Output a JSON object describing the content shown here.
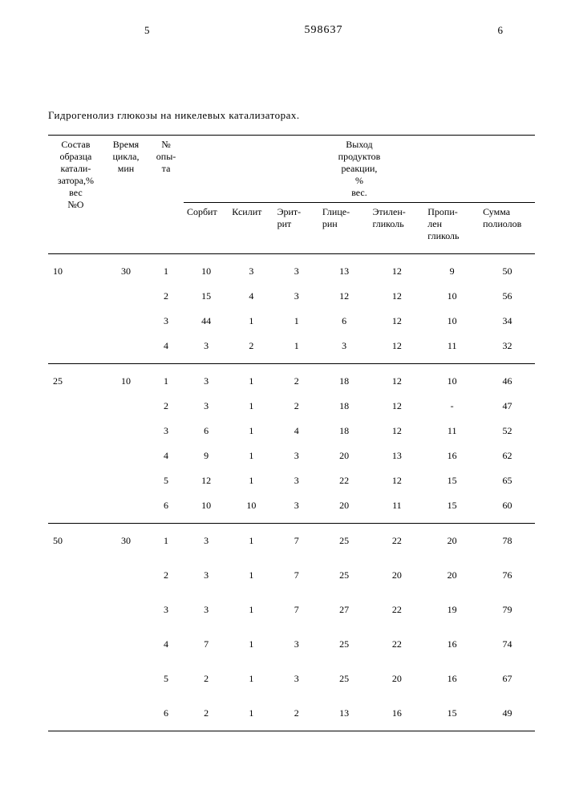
{
  "page_left_num": "5",
  "patent_num": "598637",
  "page_right_num": "6",
  "title": "Гидрогенолиз глюкозы на никелевых катализаторах.",
  "headers": {
    "super": "Выход продуктов реакции, % вес.",
    "c0": "Состав образца катали- затора,% вес №О",
    "c1": "Время цикла, мин",
    "c2": "№ опы- та",
    "c3": "Сорбит",
    "c4": "Ксилит",
    "c5": "Эрит- рит",
    "c6": "Глице- рин",
    "c7": "Этилен- гликоль",
    "c8": "Пропи- лен гликоль",
    "c9": "Сумма полиолов"
  },
  "sections": [
    {
      "c0": "10",
      "c1": "30",
      "rows": [
        [
          "1",
          "10",
          "3",
          "3",
          "13",
          "12",
          "9",
          "50"
        ],
        [
          "2",
          "15",
          "4",
          "3",
          "12",
          "12",
          "10",
          "56"
        ],
        [
          "3",
          "44",
          "1",
          "1",
          "6",
          "12",
          "10",
          "34"
        ],
        [
          "4",
          "3",
          "2",
          "1",
          "3",
          "12",
          "11",
          "32"
        ]
      ]
    },
    {
      "c0": "25",
      "c1": "10",
      "rows": [
        [
          "1",
          "3",
          "1",
          "2",
          "18",
          "12",
          "10",
          "46"
        ],
        [
          "2",
          "3",
          "1",
          "2",
          "18",
          "12",
          "-",
          "47"
        ],
        [
          "3",
          "6",
          "1",
          "4",
          "18",
          "12",
          "11",
          "52"
        ],
        [
          "4",
          "9",
          "1",
          "3",
          "20",
          "13",
          "16",
          "62"
        ],
        [
          "5",
          "12",
          "1",
          "3",
          "22",
          "12",
          "15",
          "65"
        ],
        [
          "6",
          "10",
          "10",
          "3",
          "20",
          "11",
          "15",
          "60"
        ]
      ]
    },
    {
      "c0": "50",
      "c1": "30",
      "rows": [
        [
          "1",
          "3",
          "1",
          "7",
          "25",
          "22",
          "20",
          "78"
        ],
        [
          "2",
          "3",
          "1",
          "7",
          "25",
          "20",
          "20",
          "76"
        ],
        [
          "3",
          "3",
          "1",
          "7",
          "27",
          "22",
          "19",
          "79"
        ],
        [
          "4",
          "7",
          "1",
          "3",
          "25",
          "22",
          "16",
          "74"
        ],
        [
          "5",
          "2",
          "1",
          "3",
          "25",
          "20",
          "16",
          "67"
        ],
        [
          "6",
          "2",
          "1",
          "2",
          "13",
          "16",
          "15",
          "49"
        ]
      ]
    }
  ]
}
